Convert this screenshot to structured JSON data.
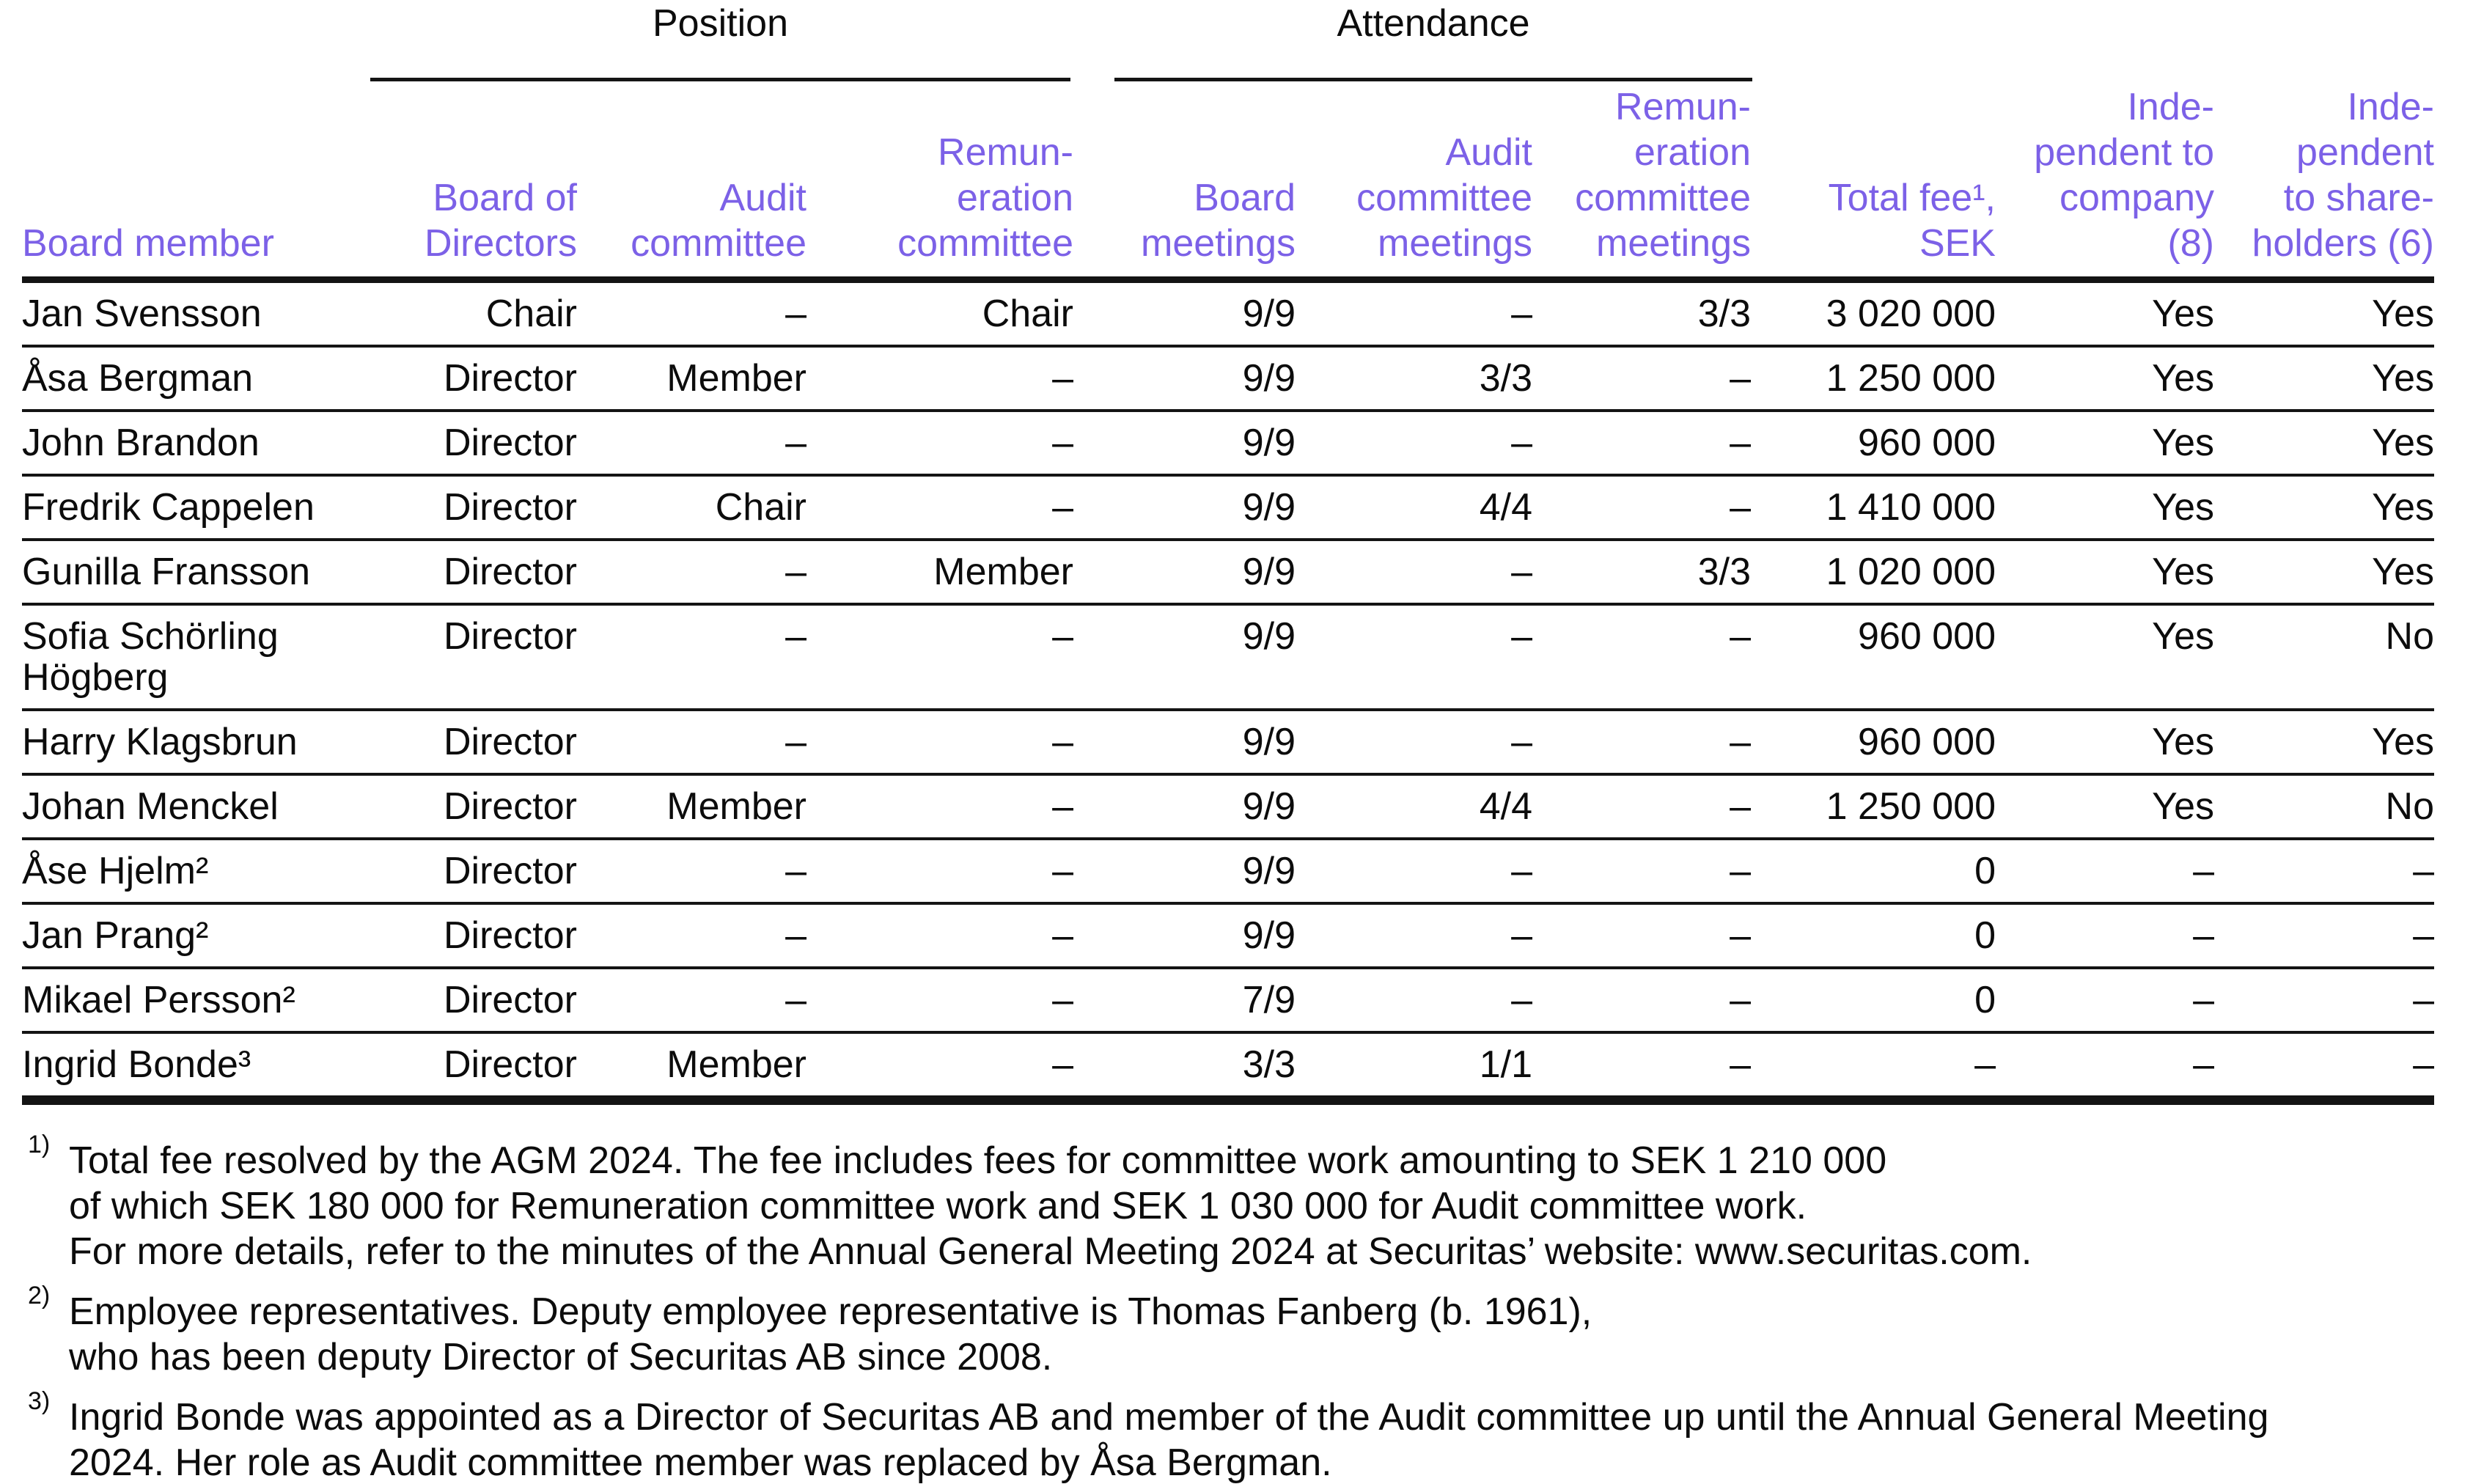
{
  "accent_color": "#7c61e7",
  "rule_color": "#141414",
  "table": {
    "groups": [
      {
        "id": "position",
        "label": "Position"
      },
      {
        "id": "attendance",
        "label": "Attendance"
      }
    ],
    "columns": [
      {
        "id": "board-member",
        "lines": [
          "Board member"
        ]
      },
      {
        "id": "board-of-directors",
        "lines": [
          "Board of",
          "Directors"
        ]
      },
      {
        "id": "audit-committee",
        "lines": [
          "Audit",
          "committee"
        ]
      },
      {
        "id": "remuneration-committee",
        "lines": [
          "Remun-",
          "eration",
          "committee"
        ]
      },
      {
        "id": "board-meetings",
        "lines": [
          "Board",
          "meetings"
        ]
      },
      {
        "id": "audit-committee-meetings",
        "lines": [
          "Audit",
          "committee",
          "meetings"
        ]
      },
      {
        "id": "remuneration-committee-meetings",
        "lines": [
          "Remun-",
          "eration",
          "committee",
          "meetings"
        ]
      },
      {
        "id": "total-fee-sek",
        "lines": [
          "Total fee¹,",
          "SEK"
        ]
      },
      {
        "id": "independent-to-company",
        "lines": [
          "Inde-",
          "pendent to",
          "company",
          "(8)"
        ]
      },
      {
        "id": "independent-to-shareholders",
        "lines": [
          "Inde-",
          "pendent",
          "to share-",
          "holders (6)"
        ]
      }
    ],
    "rows": [
      {
        "member": "Jan Svensson",
        "values": [
          "Chair",
          "–",
          "Chair",
          "9/9",
          "–",
          "3/3",
          "3 020 000",
          "Yes",
          "Yes"
        ]
      },
      {
        "member": "Åsa Bergman",
        "values": [
          "Director",
          "Member",
          "–",
          "9/9",
          "3/3",
          "–",
          "1 250 000",
          "Yes",
          "Yes"
        ]
      },
      {
        "member": "John Brandon",
        "values": [
          "Director",
          "–",
          "–",
          "9/9",
          "–",
          "–",
          "960 000",
          "Yes",
          "Yes"
        ]
      },
      {
        "member": "Fredrik Cappelen",
        "values": [
          "Director",
          "Chair",
          "–",
          "9/9",
          "4/4",
          "–",
          "1 410 000",
          "Yes",
          "Yes"
        ]
      },
      {
        "member": "Gunilla Fransson",
        "values": [
          "Director",
          "–",
          "Member",
          "9/9",
          "–",
          "3/3",
          "1 020 000",
          "Yes",
          "Yes"
        ]
      },
      {
        "member": "Sofia Schörling Högberg",
        "values": [
          "Director",
          "–",
          "–",
          "9/9",
          "–",
          "–",
          "960 000",
          "Yes",
          "No"
        ]
      },
      {
        "member": "Harry Klagsbrun",
        "values": [
          "Director",
          "–",
          "–",
          "9/9",
          "–",
          "–",
          "960 000",
          "Yes",
          "Yes"
        ]
      },
      {
        "member": "Johan Menckel",
        "values": [
          "Director",
          "Member",
          "–",
          "9/9",
          "4/4",
          "–",
          "1 250 000",
          "Yes",
          "No"
        ]
      },
      {
        "member": "Åse Hjelm²",
        "values": [
          "Director",
          "–",
          "–",
          "9/9",
          "–",
          "–",
          "0",
          "–",
          "–"
        ]
      },
      {
        "member": "Jan Prang²",
        "values": [
          "Director",
          "–",
          "–",
          "9/9",
          "–",
          "–",
          "0",
          "–",
          "–"
        ]
      },
      {
        "member": "Mikael Persson²",
        "values": [
          "Director",
          "–",
          "–",
          "7/9",
          "–",
          "–",
          "0",
          "–",
          "–"
        ]
      },
      {
        "member": "Ingrid Bonde³",
        "values": [
          "Director",
          "Member",
          "–",
          "3/3",
          "1/1",
          "–",
          "–",
          "–",
          "–"
        ]
      }
    ]
  },
  "footnotes": [
    {
      "marker": "1)",
      "lines": [
        "Total fee resolved by the AGM 2024. The fee includes fees for committee work amounting to SEK 1 210 000",
        "of which SEK 180 000 for Remuneration committee work and SEK 1 030 000 for Audit committee work.",
        "For more details, refer to the minutes of the Annual General Meeting 2024 at Securitas’ website: www.securitas.com."
      ]
    },
    {
      "marker": "2)",
      "lines": [
        "Employee representatives. Deputy employee representative is Thomas Fanberg (b. 1961),",
        "who has been deputy Director of Securitas AB since 2008."
      ]
    },
    {
      "marker": "3)",
      "lines": [
        "Ingrid Bonde was appointed as a Director of Securitas AB and member of the Audit committee up until the Annual General Meeting",
        "2024. Her role as Audit committee member was replaced by Åsa Bergman."
      ]
    }
  ]
}
